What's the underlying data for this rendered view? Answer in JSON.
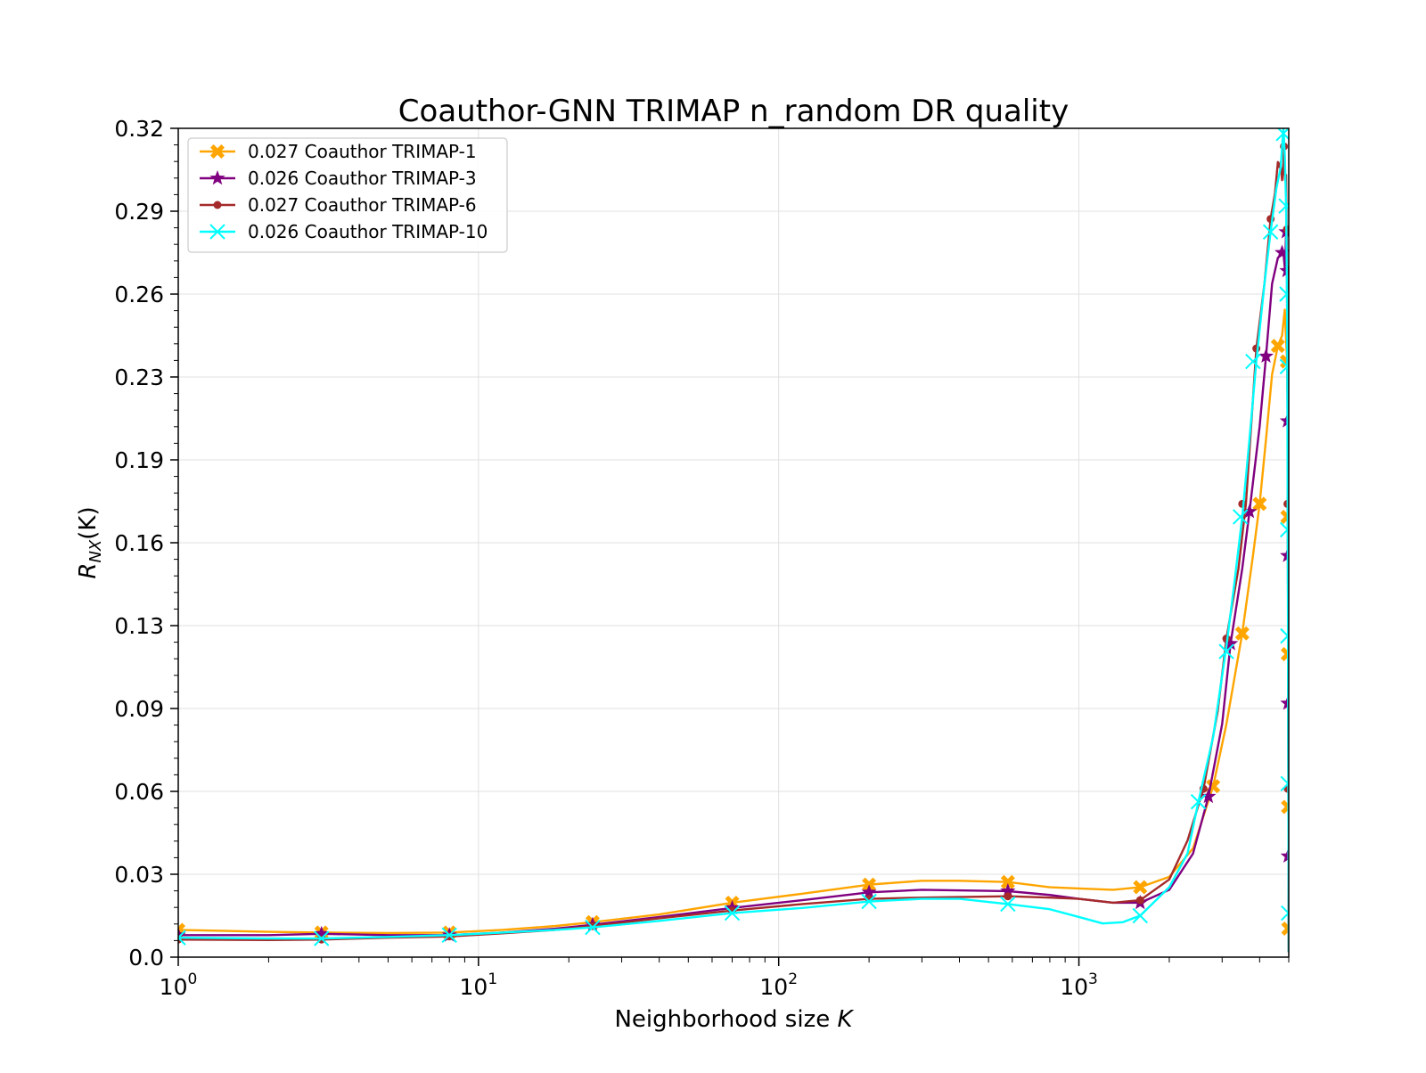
{
  "chart_data": {
    "type": "line",
    "title": "Coauthor-GNN TRIMAP n_random DR quality",
    "xlabel": {
      "prefix": "Neighborhood size ",
      "var": "K"
    },
    "ylabel": {
      "base": "R",
      "sub": "NX",
      "args": "(K)"
    },
    "xscale": "log",
    "xlim": [
      1,
      5000
    ],
    "ylim": [
      0.0,
      0.32
    ],
    "yticks": [
      "0.0",
      "0.03",
      "0.06",
      "0.09",
      "0.13",
      "0.16",
      "0.19",
      "0.23",
      "0.26",
      "0.29",
      "0.32"
    ],
    "xticks": [
      {
        "base": "10",
        "exp": "0",
        "value": 1
      },
      {
        "base": "10",
        "exp": "1",
        "value": 10
      },
      {
        "base": "10",
        "exp": "2",
        "value": 100
      },
      {
        "base": "10",
        "exp": "3",
        "value": 1000
      }
    ],
    "grid": true,
    "legend_position": "top-left",
    "series": [
      {
        "name": "0.027 Coauthor TRIMAP-1",
        "color": "#FFA500",
        "marker": "X",
        "points": [
          [
            1,
            0.0105
          ],
          [
            2,
            0.0098
          ],
          [
            3,
            0.0095
          ],
          [
            5,
            0.0093
          ],
          [
            8,
            0.0095
          ],
          [
            12,
            0.0105
          ],
          [
            18,
            0.012
          ],
          [
            24,
            0.0135
          ],
          [
            40,
            0.0165
          ],
          [
            70,
            0.021
          ],
          [
            120,
            0.0245
          ],
          [
            200,
            0.028
          ],
          [
            300,
            0.0295
          ],
          [
            400,
            0.0295
          ],
          [
            580,
            0.029
          ],
          [
            800,
            0.027
          ],
          [
            1000,
            0.0265
          ],
          [
            1300,
            0.026
          ],
          [
            1600,
            0.027
          ],
          [
            2000,
            0.031
          ],
          [
            2400,
            0.042
          ],
          [
            2800,
            0.066
          ],
          [
            3100,
            0.09
          ],
          [
            3500,
            0.125
          ],
          [
            3800,
            0.155
          ],
          [
            4000,
            0.175
          ],
          [
            4200,
            0.2
          ],
          [
            4400,
            0.225
          ],
          [
            4600,
            0.236
          ],
          [
            4750,
            0.24
          ],
          [
            4850,
            0.25
          ],
          [
            4900,
            0.238
          ],
          [
            4940,
            0.23
          ],
          [
            4970,
            0.2
          ],
          [
            4985,
            0.1
          ],
          [
            5000,
            0.002
          ]
        ],
        "marker_points": [
          [
            1,
            0.0105
          ],
          [
            3,
            0.0095
          ],
          [
            8,
            0.0095
          ],
          [
            24,
            0.0135
          ],
          [
            70,
            0.021
          ],
          [
            200,
            0.028
          ],
          [
            580,
            0.029
          ],
          [
            1600,
            0.027
          ],
          [
            2800,
            0.066
          ],
          [
            3500,
            0.125
          ],
          [
            4000,
            0.175
          ],
          [
            4600,
            0.236
          ],
          [
            4930,
            0.23
          ],
          [
            4950,
            0.17
          ],
          [
            4965,
            0.117
          ],
          [
            4975,
            0.058
          ],
          [
            4985,
            0.011
          ]
        ]
      },
      {
        "name": "0.026 Coauthor TRIMAP-3",
        "color": "#800080",
        "marker": "*",
        "points": [
          [
            1,
            0.0085
          ],
          [
            2,
            0.0085
          ],
          [
            3,
            0.009
          ],
          [
            5,
            0.0085
          ],
          [
            8,
            0.0085
          ],
          [
            12,
            0.0095
          ],
          [
            18,
            0.011
          ],
          [
            24,
            0.0125
          ],
          [
            40,
            0.0155
          ],
          [
            70,
            0.019
          ],
          [
            120,
            0.022
          ],
          [
            200,
            0.025
          ],
          [
            300,
            0.026
          ],
          [
            580,
            0.0255
          ],
          [
            800,
            0.024
          ],
          [
            1000,
            0.0225
          ],
          [
            1300,
            0.021
          ],
          [
            1600,
            0.021
          ],
          [
            2000,
            0.026
          ],
          [
            2400,
            0.04
          ],
          [
            2700,
            0.062
          ],
          [
            3000,
            0.09
          ],
          [
            3200,
            0.121
          ],
          [
            3500,
            0.15
          ],
          [
            3700,
            0.172
          ],
          [
            4000,
            0.205
          ],
          [
            4200,
            0.232
          ],
          [
            4400,
            0.26
          ],
          [
            4600,
            0.27
          ],
          [
            4800,
            0.272
          ],
          [
            4860,
            0.265
          ],
          [
            4900,
            0.28
          ],
          [
            4930,
            0.265
          ],
          [
            4960,
            0.2
          ],
          [
            4985,
            0.08
          ],
          [
            5000,
            0.002
          ]
        ],
        "marker_points": [
          [
            1,
            0.0085
          ],
          [
            3,
            0.009
          ],
          [
            8,
            0.0085
          ],
          [
            24,
            0.0125
          ],
          [
            70,
            0.019
          ],
          [
            200,
            0.025
          ],
          [
            580,
            0.0255
          ],
          [
            1600,
            0.021
          ],
          [
            2700,
            0.062
          ],
          [
            3200,
            0.121
          ],
          [
            3700,
            0.172
          ],
          [
            4200,
            0.232
          ],
          [
            4750,
            0.272
          ],
          [
            4900,
            0.28
          ],
          [
            4930,
            0.265
          ],
          [
            4945,
            0.207
          ],
          [
            4955,
            0.155
          ],
          [
            4965,
            0.098
          ],
          [
            4975,
            0.039
          ]
        ]
      },
      {
        "name": "0.027 Coauthor TRIMAP-6",
        "color": "#A52A2A",
        "marker": "o",
        "points": [
          [
            1,
            0.0068
          ],
          [
            2,
            0.0066
          ],
          [
            3,
            0.0068
          ],
          [
            5,
            0.0075
          ],
          [
            8,
            0.008
          ],
          [
            12,
            0.0092
          ],
          [
            18,
            0.0105
          ],
          [
            24,
            0.012
          ],
          [
            40,
            0.015
          ],
          [
            70,
            0.018
          ],
          [
            120,
            0.0205
          ],
          [
            200,
            0.0225
          ],
          [
            300,
            0.023
          ],
          [
            580,
            0.0235
          ],
          [
            800,
            0.023
          ],
          [
            1000,
            0.0225
          ],
          [
            1300,
            0.021
          ],
          [
            1600,
            0.022
          ],
          [
            2000,
            0.03
          ],
          [
            2300,
            0.045
          ],
          [
            2600,
            0.065
          ],
          [
            2900,
            0.095
          ],
          [
            3100,
            0.123
          ],
          [
            3400,
            0.15
          ],
          [
            3600,
            0.175
          ],
          [
            3900,
            0.235
          ],
          [
            4150,
            0.26
          ],
          [
            4350,
            0.285
          ],
          [
            4500,
            0.295
          ],
          [
            4600,
            0.307
          ],
          [
            4650,
            0.305
          ],
          [
            4700,
            0.307
          ],
          [
            4750,
            0.3
          ],
          [
            4800,
            0.305
          ],
          [
            4820,
            0.313
          ],
          [
            4860,
            0.3
          ],
          [
            4900,
            0.302
          ],
          [
            4950,
            0.25
          ],
          [
            4980,
            0.1
          ],
          [
            5000,
            0.002
          ]
        ],
        "marker_points": [
          [
            1,
            0.0068
          ],
          [
            3,
            0.0068
          ],
          [
            8,
            0.008
          ],
          [
            24,
            0.012
          ],
          [
            70,
            0.018
          ],
          [
            200,
            0.0225
          ],
          [
            580,
            0.0235
          ],
          [
            1600,
            0.022
          ],
          [
            2600,
            0.065
          ],
          [
            3100,
            0.123
          ],
          [
            3500,
            0.175
          ],
          [
            3900,
            0.235
          ],
          [
            4350,
            0.285
          ],
          [
            4820,
            0.313
          ],
          [
            4930,
            0.281
          ],
          [
            4950,
            0.175
          ],
          [
            4965,
            0.065
          ]
        ]
      },
      {
        "name": "0.026 Coauthor TRIMAP-10",
        "color": "#00FFFF",
        "marker": "x",
        "points": [
          [
            1,
            0.0075
          ],
          [
            2,
            0.0072
          ],
          [
            3,
            0.0072
          ],
          [
            5,
            0.0078
          ],
          [
            8,
            0.0085
          ],
          [
            12,
            0.0095
          ],
          [
            18,
            0.0105
          ],
          [
            24,
            0.0115
          ],
          [
            40,
            0.014
          ],
          [
            70,
            0.017
          ],
          [
            120,
            0.019
          ],
          [
            200,
            0.0215
          ],
          [
            300,
            0.0225
          ],
          [
            400,
            0.0225
          ],
          [
            580,
            0.0205
          ],
          [
            800,
            0.0185
          ],
          [
            1000,
            0.0155
          ],
          [
            1200,
            0.013
          ],
          [
            1400,
            0.0135
          ],
          [
            1600,
            0.016
          ],
          [
            2000,
            0.027
          ],
          [
            2300,
            0.04
          ],
          [
            2500,
            0.06
          ],
          [
            2800,
            0.085
          ],
          [
            3100,
            0.12
          ],
          [
            3300,
            0.145
          ],
          [
            3500,
            0.17
          ],
          [
            3700,
            0.2
          ],
          [
            3900,
            0.23
          ],
          [
            4150,
            0.26
          ],
          [
            4350,
            0.28
          ],
          [
            4550,
            0.297
          ],
          [
            4700,
            0.305
          ],
          [
            4800,
            0.32
          ],
          [
            4850,
            0.31
          ],
          [
            4900,
            0.29
          ],
          [
            4940,
            0.25
          ],
          [
            4970,
            0.13
          ],
          [
            5000,
            0.002
          ]
        ],
        "marker_points": [
          [
            1,
            0.0075
          ],
          [
            3,
            0.0072
          ],
          [
            8,
            0.0085
          ],
          [
            24,
            0.0115
          ],
          [
            70,
            0.017
          ],
          [
            200,
            0.0215
          ],
          [
            580,
            0.0205
          ],
          [
            1600,
            0.016
          ],
          [
            2500,
            0.06
          ],
          [
            3100,
            0.118
          ],
          [
            3450,
            0.17
          ],
          [
            3800,
            0.23
          ],
          [
            4350,
            0.28
          ],
          [
            4800,
            0.318
          ],
          [
            4900,
            0.29
          ],
          [
            4930,
            0.256
          ],
          [
            4945,
            0.228
          ],
          [
            4955,
            0.165
          ],
          [
            4965,
            0.124
          ],
          [
            4975,
            0.067
          ],
          [
            4990,
            0.017
          ]
        ]
      }
    ]
  }
}
